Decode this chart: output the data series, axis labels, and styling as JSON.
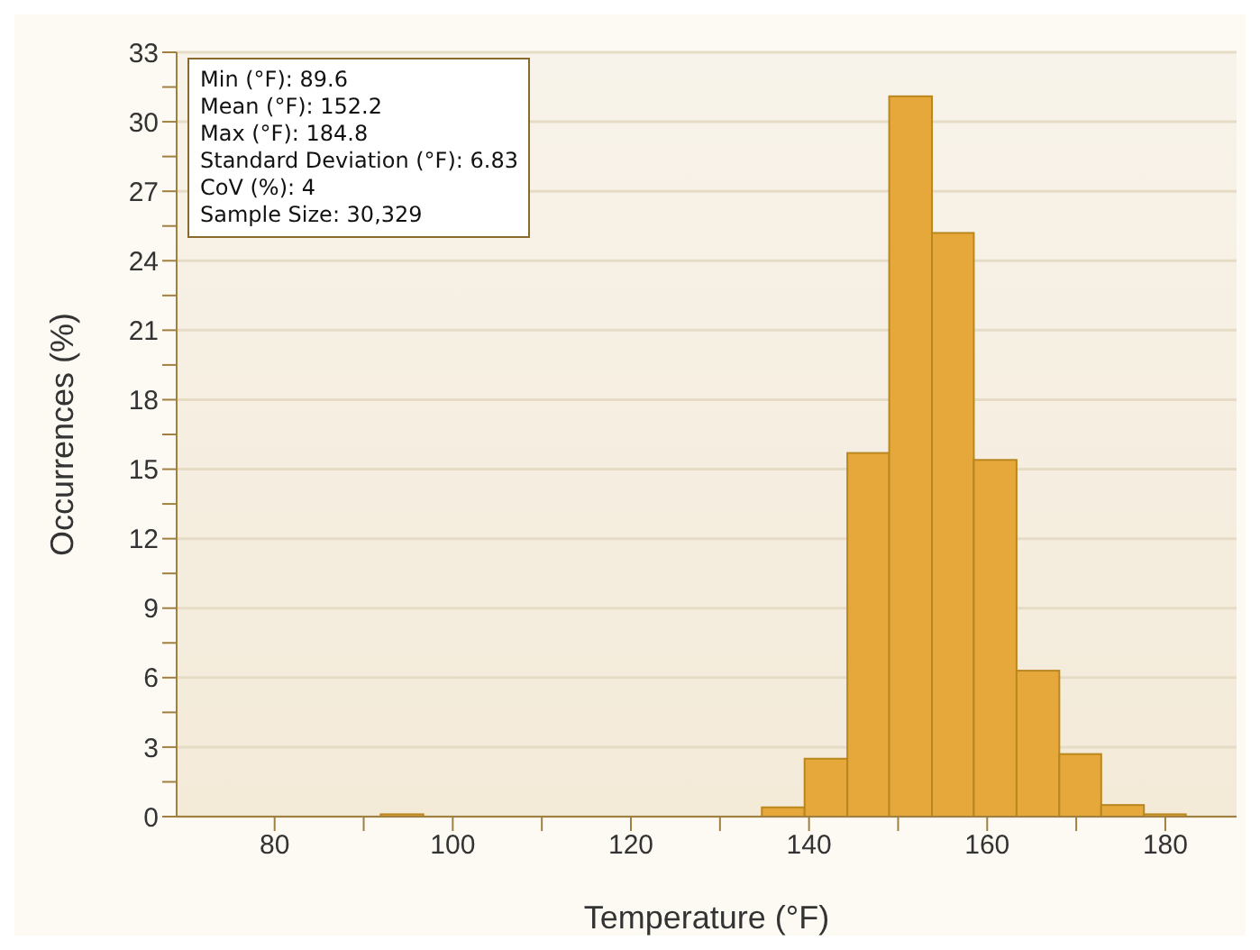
{
  "chart_data": {
    "type": "histogram",
    "xlabel": "Temperature (°F)",
    "ylabel": "Occurrences (%)",
    "bins": [
      91.9,
      96.7,
      134.7,
      139.5,
      144.3,
      149.0,
      153.8,
      158.5,
      163.3,
      168.1,
      172.8,
      177.6,
      182.3
    ],
    "values": [
      0.1,
      0,
      0.4,
      2.5,
      15.7,
      31.1,
      25.2,
      15.4,
      6.3,
      2.7,
      0.5,
      0.1
    ],
    "color": "#e6a83a",
    "xlim": [
      69,
      188
    ],
    "xticks": [
      80,
      {
        "value": 90,
        "label": null
      },
      100,
      {
        "value": 110,
        "label": null
      },
      120,
      {
        "value": 130,
        "label": null
      },
      140,
      {
        "value": 150,
        "label": null
      },
      160,
      {
        "value": 170,
        "label": null
      },
      180
    ],
    "ylim": [
      0,
      33
    ],
    "yticks": [
      0,
      {
        "value": 1.5,
        "label": null
      },
      3,
      {
        "value": 4.5,
        "label": null
      },
      6,
      {
        "value": 7.5,
        "label": null
      },
      9,
      {
        "value": 10.5,
        "label": null
      },
      12,
      {
        "value": 13.5,
        "label": null
      },
      15,
      {
        "value": 16.5,
        "label": null
      },
      18,
      {
        "value": 19.5,
        "label": null
      },
      21,
      {
        "value": 22.5,
        "label": null
      },
      24,
      {
        "value": 25.5,
        "label": null
      },
      27,
      {
        "value": 28.5,
        "label": null
      },
      30,
      {
        "value": 31.5,
        "label": null
      },
      33
    ],
    "grid": "y",
    "annotations": [
      "Min (°F): 89.6",
      "Mean (°F): 152.2",
      "Max (°F): 184.8",
      "Standard Deviation (°F): 6.83",
      "CoV (%): 4",
      "Sample Size: 30,329"
    ]
  }
}
